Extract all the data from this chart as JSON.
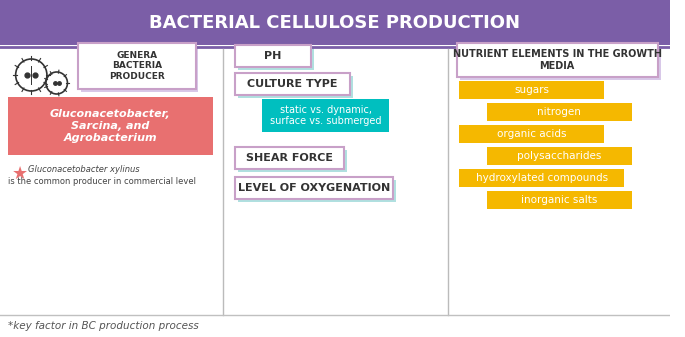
{
  "title": "BACTERIAL CELLULOSE PRODUCTION",
  "title_bg": "#7B5EA7",
  "title_color": "#FFFFFF",
  "bg_color": "#FFFFFF",
  "border_color": "#C0C0C0",
  "col1_label": "GENERA\nBACTERIA\nPRODUCER",
  "col1_label_box_color": "#FFFFFF",
  "col1_label_border": "#C8A0C8",
  "col1_bacteria_text": "Gluconacetobacter,\nSarcina, and\nAgrobacterium",
  "col1_bacteria_bg": "#E87070",
  "col1_bacteria_text_color": "#FFFFFF",
  "col1_note_bold": "Gluconacetobacter xylinus",
  "col1_note_rest": "is the common producer in commercial level",
  "col1_star_color": "#E87070",
  "col2_items": [
    "PH",
    "CULTURE TYPE",
    "SHEAR FORCE",
    "LEVEL OF OXYGENATION"
  ],
  "col2_box_bg": "#FFFFFF",
  "col2_box_border": "#C8A0C8",
  "col2_teal_border": "#00BFBF",
  "col2_sub_text": "static vs. dynamic,\nsurface vs. submerged",
  "col2_sub_bg": "#00BFBF",
  "col2_sub_text_color": "#FFFFFF",
  "col3_title": "NUTRIENT ELEMENTS IN THE GROWTH\nMEDIA",
  "col3_title_bg": "#FFFFFF",
  "col3_title_border": "#C8A0C8",
  "col3_items": [
    "sugars",
    "nitrogen",
    "organic acids",
    "polysaccharides",
    "hydroxylated compounds",
    "inorganic salts"
  ],
  "col3_item_bg": "#F5B800",
  "col3_item_text_color": "#FFFFFF",
  "footer": "*key factor in BC production process",
  "footer_color": "#555555",
  "divider_color": "#C0C0C0",
  "col_divider_color": "#BBBBBB"
}
